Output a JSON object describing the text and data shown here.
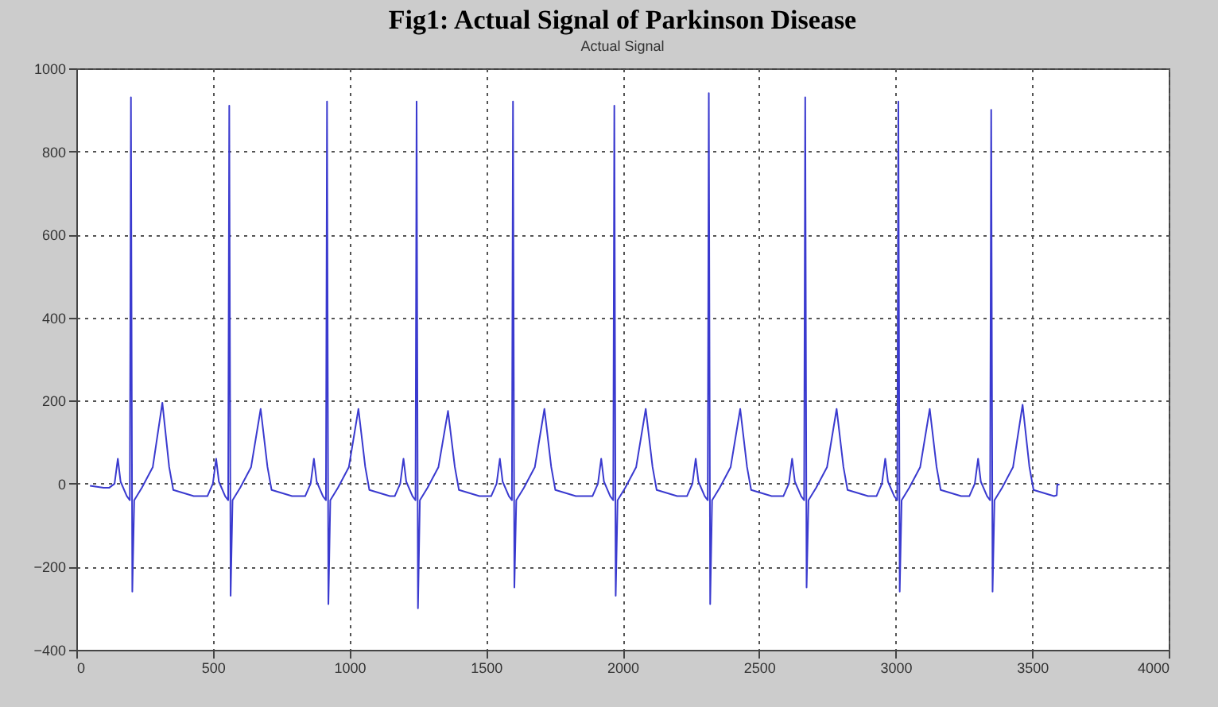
{
  "chart_data": {
    "type": "line",
    "title": "Fig1: Actual Signal of Parkinson Disease",
    "subtitle": "Actual Signal",
    "xlim": [
      0,
      4000
    ],
    "xticks": [
      0,
      500,
      1000,
      1500,
      2000,
      2500,
      3000,
      3500,
      4000
    ],
    "ylim": [
      -400,
      1000
    ],
    "yticks": [
      -400,
      -200,
      0,
      200,
      400,
      600,
      800,
      1000
    ],
    "grid": true,
    "line_style": "solid",
    "series": [
      {
        "color": "#3a3acf",
        "x": [
          50,
          100,
          120,
          140,
          152,
          162,
          185,
          196,
          200,
          205,
          212,
          240,
          280,
          315,
          340,
          355,
          430,
          480,
          500,
          512,
          522,
          545,
          556,
          560,
          565,
          572,
          600,
          640,
          675,
          700,
          715,
          790,
          838,
          858,
          870,
          880,
          903,
          914,
          918,
          923,
          930,
          958,
          998,
          1033,
          1058,
          1073,
          1148,
          1166,
          1186,
          1198,
          1208,
          1231,
          1242,
          1246,
          1251,
          1258,
          1286,
          1326,
          1361,
          1386,
          1401,
          1476,
          1519,
          1539,
          1551,
          1561,
          1584,
          1595,
          1599,
          1604,
          1611,
          1639,
          1679,
          1714,
          1739,
          1754,
          1829,
          1890,
          1910,
          1922,
          1932,
          1955,
          1966,
          1970,
          1975,
          1982,
          2010,
          2050,
          2085,
          2110,
          2125,
          2200,
          2236,
          2256,
          2268,
          2278,
          2301,
          2312,
          2316,
          2321,
          2328,
          2356,
          2396,
          2431,
          2456,
          2471,
          2546,
          2589,
          2609,
          2621,
          2631,
          2654,
          2665,
          2669,
          2674,
          2681,
          2709,
          2749,
          2784,
          2809,
          2824,
          2899,
          2930,
          2950,
          2962,
          2972,
          2995,
          3006,
          3010,
          3015,
          3022,
          3050,
          3090,
          3125,
          3150,
          3165,
          3240,
          3270,
          3290,
          3302,
          3312,
          3335,
          3346,
          3350,
          3355,
          3362,
          3390,
          3430,
          3465,
          3490,
          3505,
          3580,
          3590,
          3592,
          3600
        ],
        "values": [
          -5,
          -10,
          -10,
          0,
          60,
          5,
          -30,
          -40,
          930,
          -260,
          -40,
          -10,
          40,
          195,
          40,
          -15,
          -30,
          -30,
          0,
          60,
          5,
          -30,
          -40,
          910,
          -270,
          -40,
          -10,
          40,
          180,
          40,
          -15,
          -30,
          -30,
          0,
          60,
          5,
          -30,
          -40,
          920,
          -290,
          -40,
          -10,
          40,
          180,
          40,
          -15,
          -30,
          -30,
          0,
          60,
          5,
          -30,
          -40,
          920,
          -300,
          -40,
          -10,
          40,
          175,
          40,
          -15,
          -30,
          -30,
          0,
          60,
          5,
          -30,
          -40,
          920,
          -250,
          -40,
          -10,
          40,
          180,
          40,
          -15,
          -30,
          -30,
          0,
          60,
          5,
          -30,
          -40,
          910,
          -270,
          -40,
          -10,
          40,
          180,
          40,
          -15,
          -30,
          -30,
          0,
          60,
          5,
          -30,
          -40,
          940,
          -290,
          -40,
          -10,
          40,
          180,
          40,
          -15,
          -30,
          -30,
          0,
          60,
          5,
          -30,
          -40,
          930,
          -250,
          -40,
          -10,
          40,
          180,
          40,
          -15,
          -30,
          -30,
          0,
          60,
          5,
          -30,
          -40,
          920,
          -260,
          -40,
          -10,
          40,
          180,
          40,
          -15,
          -30,
          -30,
          0,
          60,
          5,
          -30,
          -40,
          900,
          -260,
          -40,
          -10,
          40,
          190,
          40,
          -15,
          -30,
          -28,
          -2,
          -2
        ]
      }
    ]
  }
}
